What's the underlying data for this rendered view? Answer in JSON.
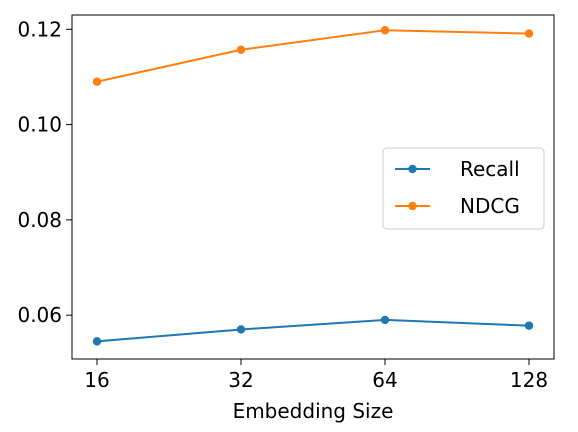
{
  "chart_data": {
    "type": "line",
    "title": "",
    "xlabel": "Embedding Size",
    "ylabel": "",
    "x": [
      16,
      32,
      64,
      128
    ],
    "x_tick_labels": [
      "16",
      "32",
      "64",
      "128"
    ],
    "x_scale": "log2",
    "ylim": [
      0.0508,
      0.123
    ],
    "y_ticks": [
      0.06,
      0.08,
      0.1,
      0.12
    ],
    "y_tick_labels": [
      "0.06",
      "0.08",
      "0.10",
      "0.12"
    ],
    "grid": false,
    "legend_position": "center-right",
    "series": [
      {
        "name": "Recall",
        "color": "#1f77b4",
        "marker": "circle",
        "values": [
          0.0545,
          0.057,
          0.059,
          0.0578
        ]
      },
      {
        "name": "NDCG",
        "color": "#ff7f0e",
        "marker": "circle",
        "values": [
          0.109,
          0.1157,
          0.1198,
          0.1191
        ]
      }
    ]
  }
}
